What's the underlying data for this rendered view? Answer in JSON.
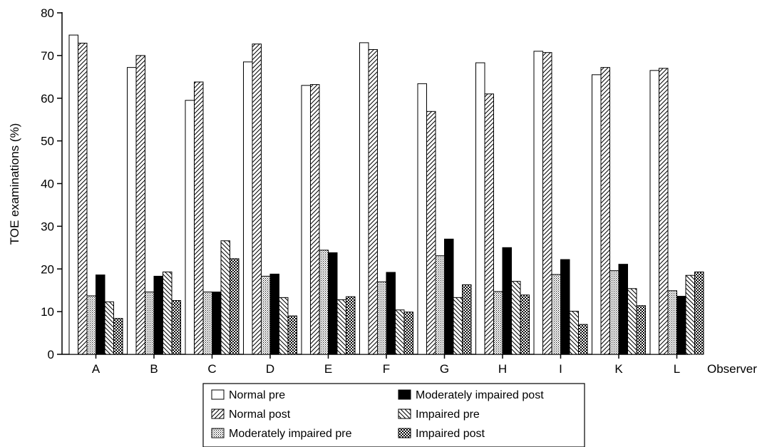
{
  "chart_data": {
    "type": "bar",
    "title": "",
    "xlabel": "Observer",
    "ylabel": "TOE examinations (%)",
    "ylim": [
      0,
      80
    ],
    "yticks": [
      0,
      10,
      20,
      30,
      40,
      50,
      60,
      70,
      80
    ],
    "grid": false,
    "legend_position": "bottom",
    "categories": [
      "A",
      "B",
      "C",
      "D",
      "E",
      "F",
      "G",
      "H",
      "I",
      "K",
      "L"
    ],
    "series": [
      {
        "name": "Normal pre",
        "pattern": "empty",
        "values": [
          74.8,
          67.2,
          59.5,
          68.5,
          63.0,
          73.0,
          63.4,
          68.3,
          71.0,
          65.5,
          66.5
        ]
      },
      {
        "name": "Normal post",
        "pattern": "diag-right",
        "values": [
          72.9,
          70.0,
          63.8,
          72.7,
          63.2,
          71.4,
          56.9,
          61.0,
          70.7,
          67.2,
          67.0
        ]
      },
      {
        "name": "Moderately impaired pre",
        "pattern": "dots",
        "values": [
          13.7,
          14.6,
          14.6,
          18.3,
          24.4,
          17.0,
          23.1,
          14.7,
          18.7,
          19.6,
          14.9
        ]
      },
      {
        "name": "Moderately impaired post",
        "pattern": "solid",
        "values": [
          18.6,
          18.3,
          14.6,
          18.8,
          23.8,
          19.2,
          27.0,
          25.0,
          22.2,
          21.1,
          13.6
        ]
      },
      {
        "name": "Impaired pre",
        "pattern": "diag-left",
        "values": [
          12.3,
          19.3,
          26.6,
          13.3,
          12.8,
          10.4,
          13.3,
          17.1,
          10.1,
          15.4,
          18.5
        ]
      },
      {
        "name": "Impaired post",
        "pattern": "checker",
        "values": [
          8.4,
          12.6,
          22.4,
          9.0,
          13.5,
          9.9,
          16.3,
          13.9,
          7.0,
          11.4,
          19.3
        ]
      }
    ]
  }
}
